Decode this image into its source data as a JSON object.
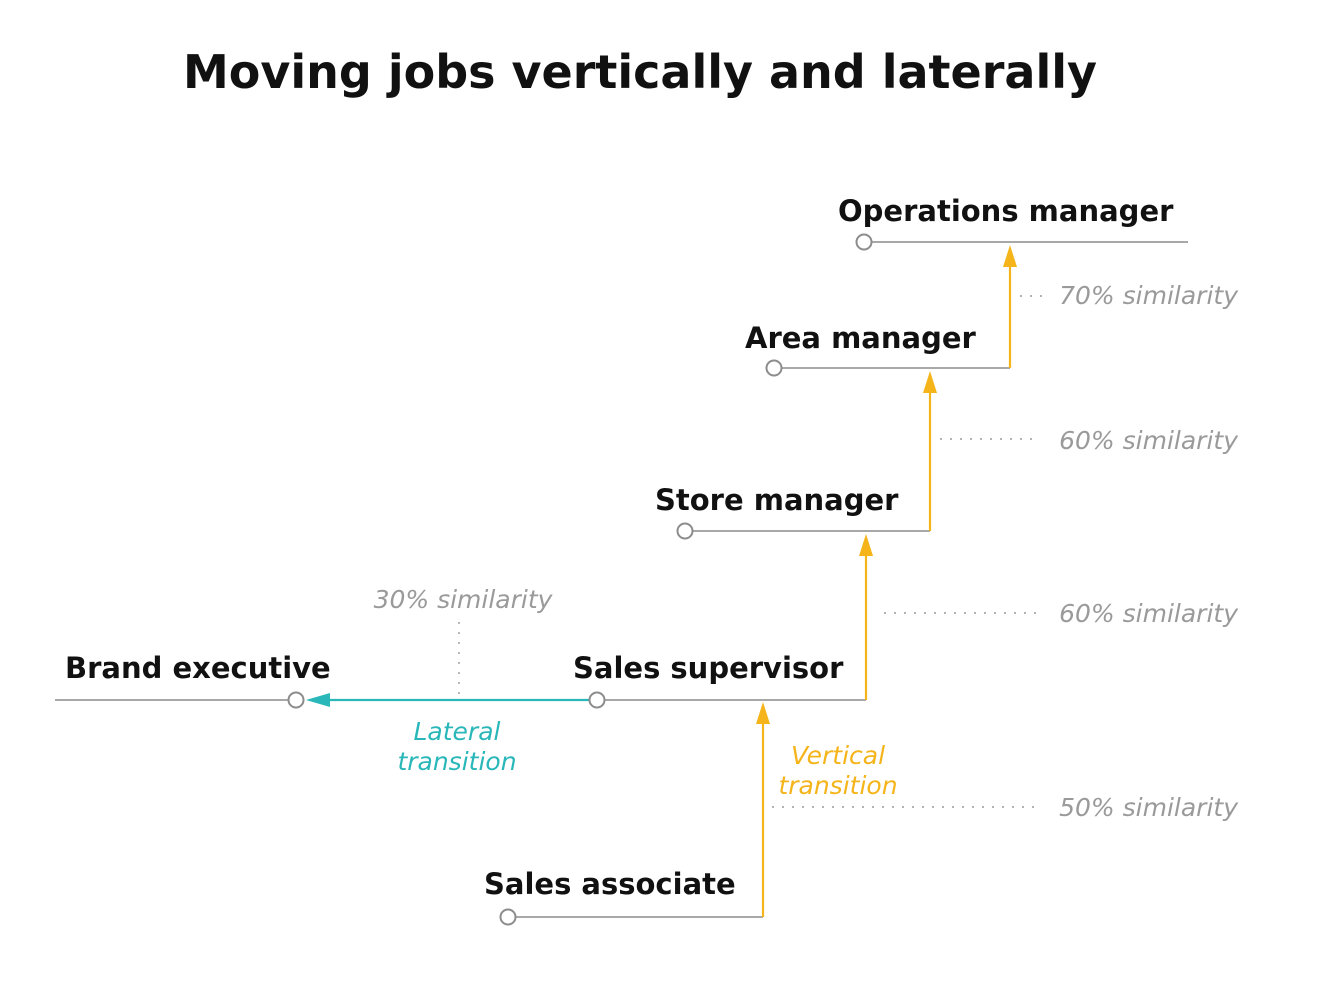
{
  "title": "Moving jobs vertically and laterally",
  "colors": {
    "vertical": "#f4b41a",
    "lateral": "#2ab7b9",
    "line": "#8c8c8c",
    "similarity_text": "#9a9a9a"
  },
  "jobs": {
    "sales_associate": "Sales associate",
    "sales_supervisor": "Sales supervisor",
    "store_manager": "Store manager",
    "area_manager": "Area manager",
    "operations_manager": "Operations manager",
    "brand_executive": "Brand executive"
  },
  "transitions": {
    "vertical_line1": "Vertical",
    "vertical_line2": "transition",
    "lateral_line1": "Lateral",
    "lateral_line2": "transition"
  },
  "similarities": {
    "associate_to_supervisor": "50% similarity",
    "supervisor_to_store": "60% similarity",
    "store_to_area": "60% similarity",
    "area_to_operations": "70% similarity",
    "supervisor_to_brand": "30% similarity"
  }
}
